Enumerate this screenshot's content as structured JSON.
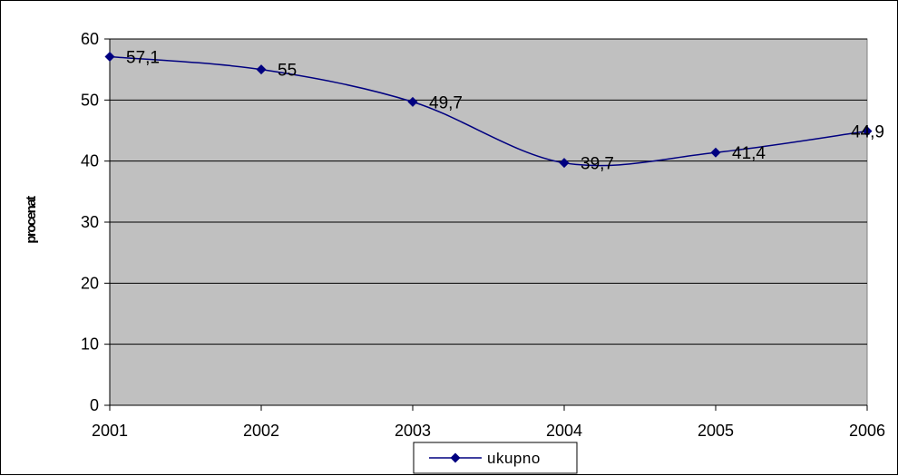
{
  "chart_data": {
    "type": "line",
    "categories": [
      "2001",
      "2002",
      "2003",
      "2004",
      "2005",
      "2006"
    ],
    "series": [
      {
        "name": "ukupno",
        "values": [
          57.1,
          55,
          49.7,
          39.7,
          41.4,
          44.9
        ],
        "data_labels": [
          "57,1",
          "55",
          "49,7",
          "39,7",
          "41,4",
          "44,9"
        ],
        "color": "#000080"
      }
    ],
    "ylabel": "procenat",
    "xlabel": "",
    "title": "",
    "ylim": [
      0,
      60
    ],
    "yticks": [
      "0",
      "10",
      "20",
      "30",
      "40",
      "50",
      "60"
    ],
    "grid": true,
    "plot_background": "#c0c0c0",
    "smooth": true,
    "marker": "diamond",
    "legend_position": "bottom"
  }
}
